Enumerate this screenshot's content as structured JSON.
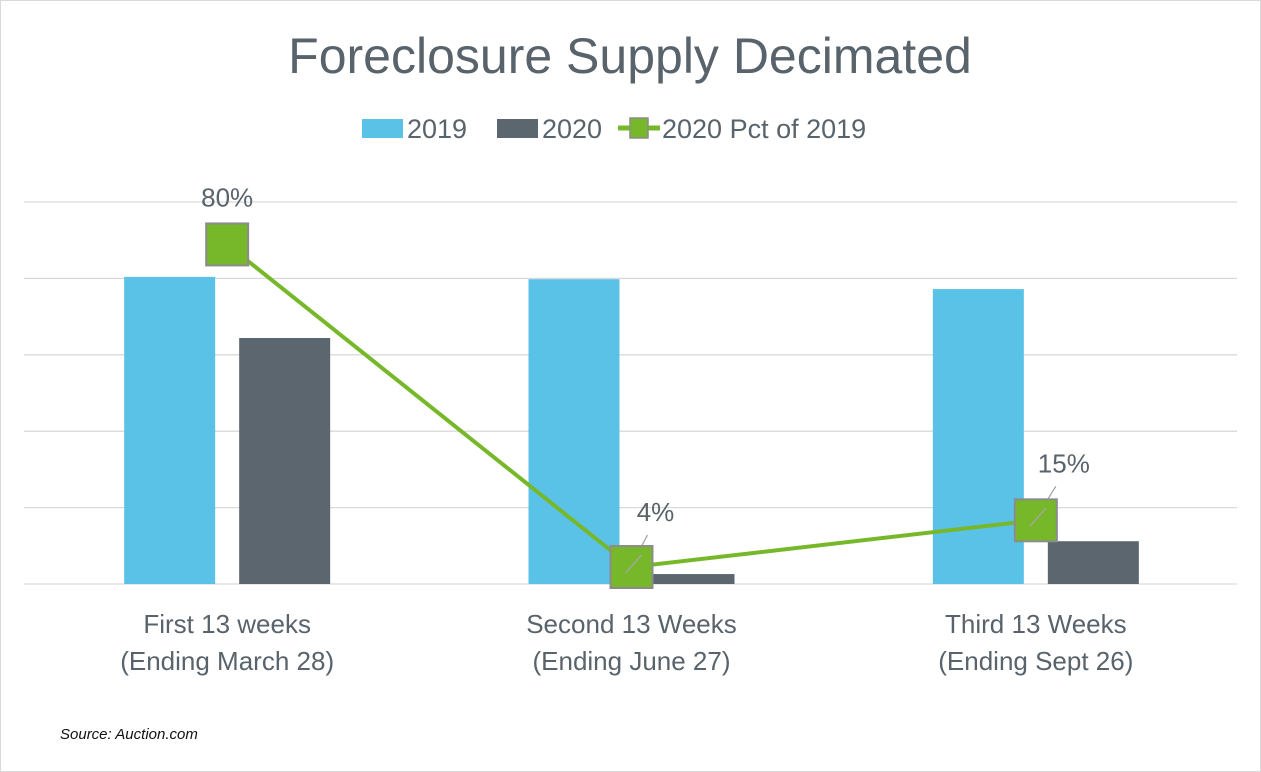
{
  "chart_data": {
    "type": "bar",
    "title": "Foreclosure Supply Decimated",
    "categories": [
      [
        "First 13 weeks",
        "(Ending March 28)"
      ],
      [
        "Second 13 Weeks",
        "(Ending June 27)"
      ],
      [
        "Third 13 Weeks",
        "(Ending Sept 26)"
      ]
    ],
    "series": [
      {
        "name": "2019",
        "type": "bar",
        "color": "#5bc2e7",
        "values": [
          4.02,
          3.99,
          3.86
        ]
      },
      {
        "name": "2020",
        "type": "bar",
        "color": "#5b666e",
        "values": [
          3.22,
          0.13,
          0.56
        ]
      },
      {
        "name": "2020 Pct of 2019",
        "type": "line",
        "axis": "secondary",
        "color": "#76b82a",
        "values": [
          0.8,
          0.04,
          0.15
        ],
        "labels": [
          "80%",
          "4%",
          "15%"
        ]
      }
    ],
    "ylim": [
      0,
      5
    ],
    "y2lim": [
      0,
      0.9
    ],
    "grid": true,
    "y_tick_labels_shown": false,
    "legend": "top-center",
    "xlabel": "",
    "ylabel": ""
  },
  "source": "Source: Auction.com"
}
